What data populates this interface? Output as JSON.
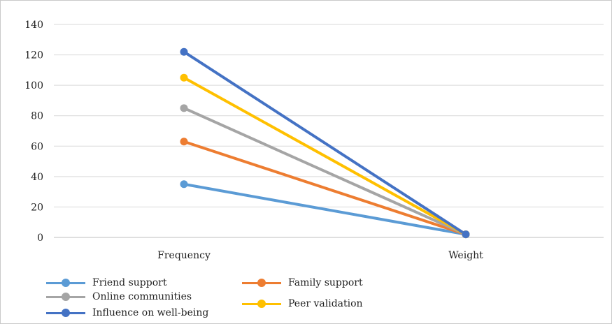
{
  "chart_data": {
    "type": "line",
    "title": "",
    "xlabel": "",
    "ylabel": "",
    "categories": [
      "Frequency",
      "Weight"
    ],
    "ylim": [
      0,
      140
    ],
    "yticks": [
      "0",
      "20",
      "40",
      "60",
      "80",
      "100",
      "120",
      "140"
    ],
    "grid": true,
    "legend_position": "bottom",
    "series": [
      {
        "name": "Friend support",
        "values": [
          35,
          2
        ],
        "color": "#5b9bd5"
      },
      {
        "name": "Family support",
        "values": [
          63,
          2
        ],
        "color": "#ed7d31"
      },
      {
        "name": "Online communities",
        "values": [
          85,
          2
        ],
        "color": "#a5a5a5"
      },
      {
        "name": "Peer validation",
        "values": [
          105,
          2
        ],
        "color": "#ffc000"
      },
      {
        "name": "Influence on well-being",
        "values": [
          122,
          2
        ],
        "color": "#4472c4"
      }
    ]
  }
}
